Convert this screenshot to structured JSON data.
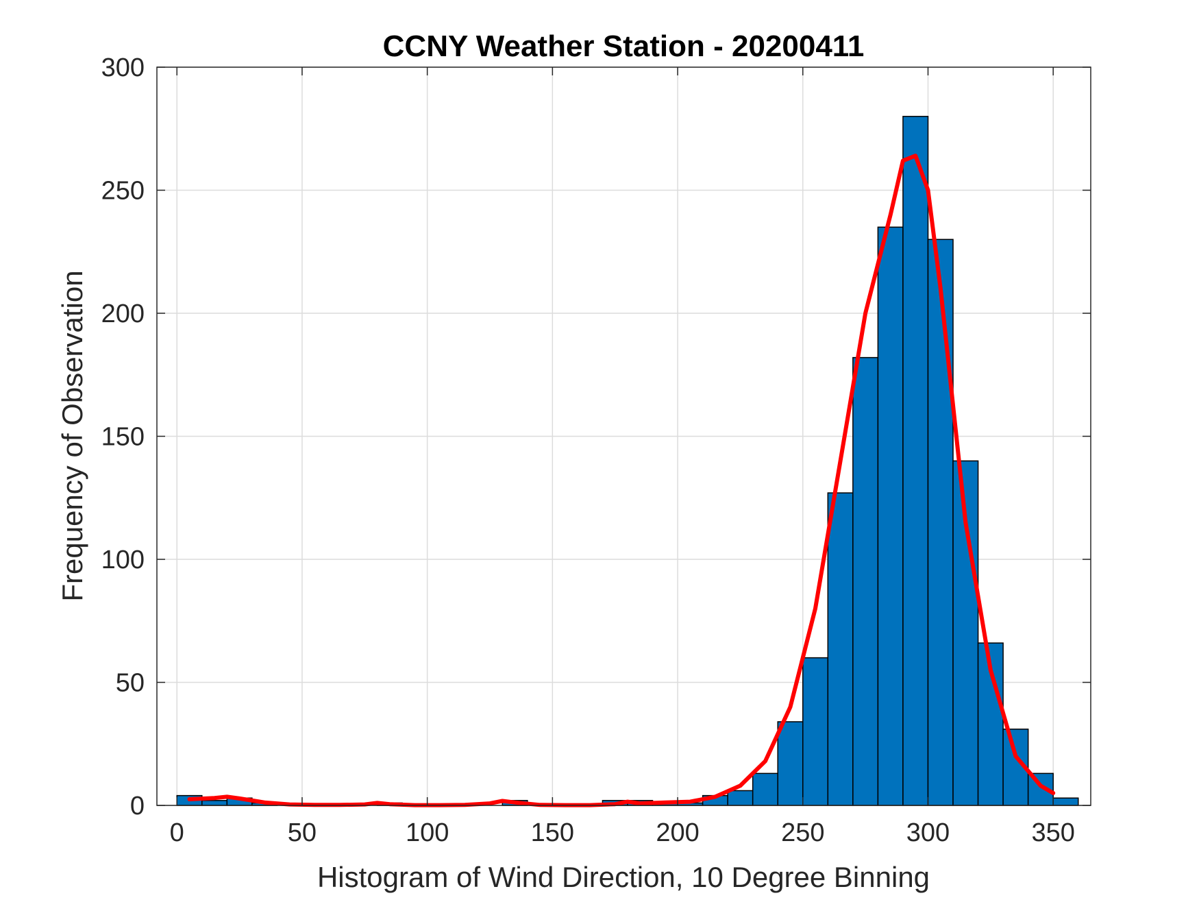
{
  "chart_data": {
    "type": "bar",
    "title": "CCNY Weather Station - 20200411",
    "xlabel": "Histogram of Wind Direction, 10 Degree Binning",
    "ylabel": "Frequency of Observation",
    "xlim": [
      -8,
      365
    ],
    "ylim": [
      0,
      300
    ],
    "xticks": [
      0,
      50,
      100,
      150,
      200,
      250,
      300,
      350
    ],
    "yticks": [
      0,
      50,
      100,
      150,
      200,
      250,
      300
    ],
    "grid": true,
    "bin_width": 10,
    "bins": [
      {
        "x_start": 0,
        "value": 4
      },
      {
        "x_start": 10,
        "value": 2
      },
      {
        "x_start": 20,
        "value": 3
      },
      {
        "x_start": 30,
        "value": 1
      },
      {
        "x_start": 40,
        "value": 0
      },
      {
        "x_start": 50,
        "value": 0
      },
      {
        "x_start": 60,
        "value": 0
      },
      {
        "x_start": 70,
        "value": 0
      },
      {
        "x_start": 80,
        "value": 1
      },
      {
        "x_start": 90,
        "value": 0
      },
      {
        "x_start": 100,
        "value": 0
      },
      {
        "x_start": 110,
        "value": 0
      },
      {
        "x_start": 120,
        "value": 0
      },
      {
        "x_start": 130,
        "value": 2
      },
      {
        "x_start": 140,
        "value": 0
      },
      {
        "x_start": 150,
        "value": 0
      },
      {
        "x_start": 160,
        "value": 0
      },
      {
        "x_start": 170,
        "value": 2
      },
      {
        "x_start": 180,
        "value": 2
      },
      {
        "x_start": 190,
        "value": 1
      },
      {
        "x_start": 200,
        "value": 1
      },
      {
        "x_start": 210,
        "value": 4
      },
      {
        "x_start": 220,
        "value": 6
      },
      {
        "x_start": 230,
        "value": 13
      },
      {
        "x_start": 240,
        "value": 34
      },
      {
        "x_start": 250,
        "value": 60
      },
      {
        "x_start": 260,
        "value": 127
      },
      {
        "x_start": 270,
        "value": 182
      },
      {
        "x_start": 280,
        "value": 235
      },
      {
        "x_start": 290,
        "value": 280
      },
      {
        "x_start": 300,
        "value": 230
      },
      {
        "x_start": 310,
        "value": 140
      },
      {
        "x_start": 320,
        "value": 66
      },
      {
        "x_start": 330,
        "value": 31
      },
      {
        "x_start": 340,
        "value": 13
      },
      {
        "x_start": 350,
        "value": 3
      }
    ],
    "fit_line": {
      "x": [
        5,
        15,
        20,
        25,
        35,
        45,
        55,
        65,
        75,
        80,
        85,
        95,
        105,
        115,
        125,
        130,
        135,
        145,
        155,
        165,
        175,
        180,
        185,
        195,
        205,
        215,
        225,
        235,
        245,
        255,
        265,
        275,
        285,
        290,
        295,
        300,
        305,
        315,
        325,
        335,
        345,
        350
      ],
      "y": [
        2.5,
        3,
        3.5,
        2.8,
        1.2,
        0.4,
        0.2,
        0.2,
        0.4,
        1,
        0.5,
        0.1,
        0.1,
        0.2,
        0.8,
        1.8,
        1.2,
        0.2,
        0.1,
        0.1,
        0.5,
        1.5,
        0.8,
        1.2,
        1.5,
        3.5,
        8,
        18,
        40,
        80,
        140,
        200,
        240,
        262,
        264,
        250,
        210,
        115,
        55,
        20,
        8,
        5
      ],
      "color": "#ff0000"
    },
    "bar_color": "#0072bd",
    "bar_edge_color": "#000000"
  }
}
